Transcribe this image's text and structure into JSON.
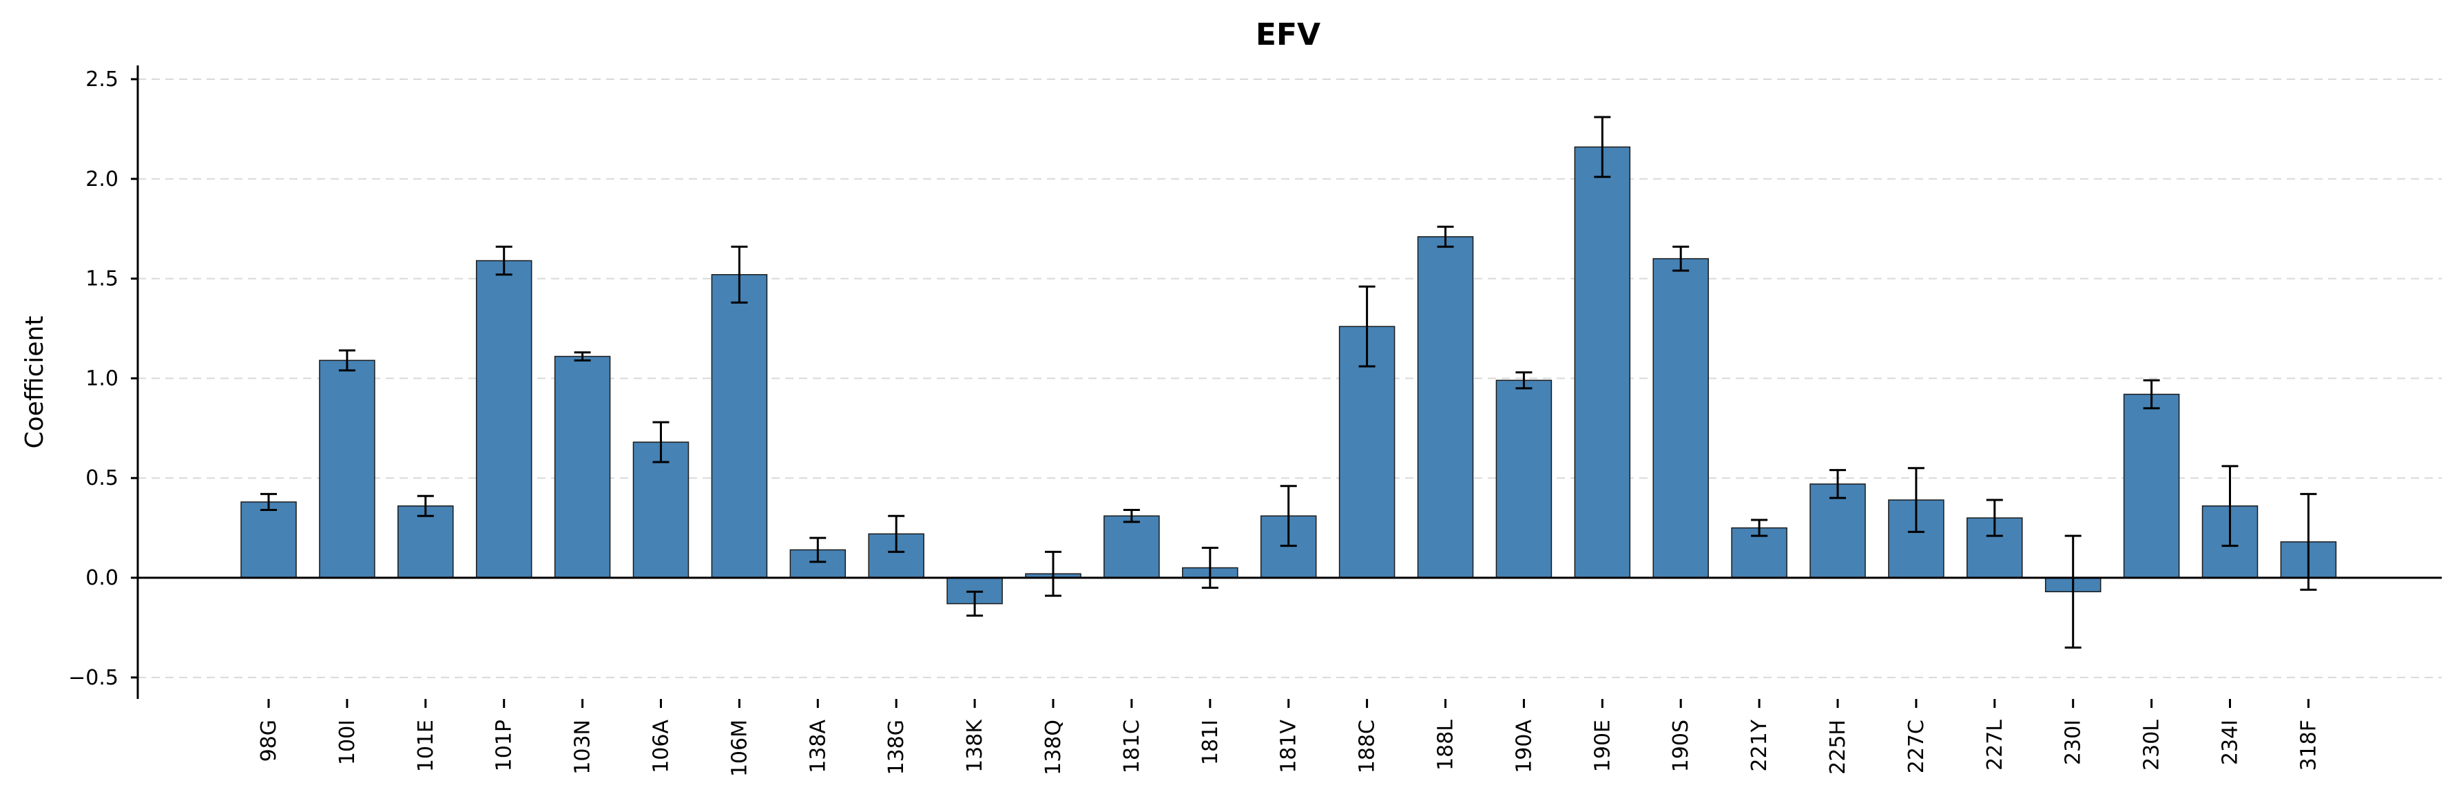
{
  "chart_data": {
    "type": "bar",
    "title": "EFV",
    "xlabel": "",
    "ylabel": "Coefficient",
    "ylim": [
      -0.6,
      2.6
    ],
    "yticks": [
      "-0.5",
      "0.0",
      "0.5",
      "1.0",
      "1.5",
      "2.0",
      "2.5"
    ],
    "ytick_values": [
      -0.5,
      0.0,
      0.5,
      1.0,
      1.5,
      2.0,
      2.5
    ],
    "grid": "horizontal dashed",
    "bar_color": "#4682B4",
    "categories": [
      "98G",
      "100I",
      "101E",
      "101P",
      "103N",
      "106A",
      "106M",
      "138A",
      "138G",
      "138K",
      "138Q",
      "181C",
      "181I",
      "181V",
      "188C",
      "188L",
      "190A",
      "190E",
      "190S",
      "221Y",
      "225H",
      "227C",
      "227L",
      "230I",
      "230L",
      "234I",
      "318F"
    ],
    "values": [
      0.38,
      1.09,
      0.36,
      1.59,
      1.11,
      0.68,
      1.52,
      0.14,
      0.22,
      -0.13,
      0.02,
      0.31,
      0.05,
      0.31,
      1.26,
      1.71,
      0.99,
      2.16,
      1.6,
      0.25,
      0.47,
      0.39,
      0.3,
      -0.07,
      0.92,
      0.36,
      0.18
    ],
    "errors": [
      0.04,
      0.05,
      0.05,
      0.07,
      0.02,
      0.1,
      0.14,
      0.06,
      0.09,
      0.06,
      0.11,
      0.03,
      0.1,
      0.15,
      0.2,
      0.05,
      0.04,
      0.15,
      0.06,
      0.04,
      0.07,
      0.16,
      0.09,
      0.28,
      0.07,
      0.2,
      0.24
    ]
  }
}
